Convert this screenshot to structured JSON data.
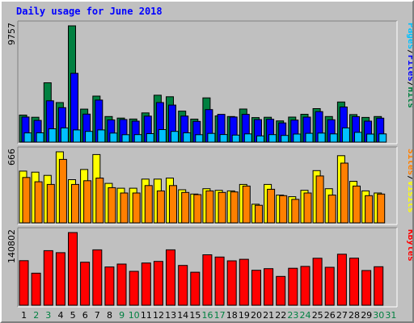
{
  "chart_data": {
    "type": "bar",
    "title": "Daily usage for June 2018",
    "categories": [
      "1",
      "2",
      "3",
      "4",
      "5",
      "6",
      "7",
      "8",
      "9",
      "10",
      "11",
      "12",
      "13",
      "14",
      "15",
      "16",
      "17",
      "18",
      "19",
      "20",
      "21",
      "22",
      "23",
      "24",
      "25",
      "26",
      "27",
      "28",
      "29",
      "30",
      "31"
    ],
    "weekend_days": [
      "2",
      "3",
      "9",
      "10",
      "16",
      "17",
      "23",
      "24",
      "30",
      "31"
    ],
    "colors": {
      "hits": "#008040",
      "files": "#0000ff",
      "pages": "#00c0ff",
      "visits": "#ffff00",
      "sites": "#ff8000",
      "kbytes": "#ff0000",
      "title": "#0000ff",
      "weekday_label": "#000000",
      "weekend_label": "#008040",
      "background": "#c0c0c0"
    },
    "panels": [
      {
        "id": "hits_files_pages",
        "ymax_label": "9757",
        "ylim": [
          0,
          9757
        ],
        "side_label": [
          "Pages",
          "/",
          "Files",
          "/",
          "Hits"
        ],
        "side_colors": [
          "#00c0ff",
          "#000000",
          "#0000ff",
          "#000000",
          "#008040"
        ],
        "series": [
          {
            "name": "Hits",
            "color": "#008040",
            "values": [
              2270,
              2090,
              4980,
              3320,
              9757,
              2770,
              3860,
              2150,
              2020,
              1940,
              2450,
              3940,
              3810,
              2600,
              1930,
              3710,
              2200,
              2150,
              2780,
              2060,
              2090,
              1780,
              2100,
              2340,
              2810,
              2150,
              3370,
              2310,
              2070,
              2150,
              0
            ]
          },
          {
            "name": "Files",
            "color": "#0000ff",
            "values": [
              2110,
              1820,
              3470,
              2890,
              5770,
              2350,
              3530,
              1860,
              1900,
              1760,
              2180,
              3320,
              3110,
              2190,
              1740,
              2730,
              2330,
              2110,
              2330,
              1890,
              1920,
              1610,
              1850,
              2100,
              2560,
              1880,
              2950,
              2140,
              1760,
              2010,
              0
            ]
          },
          {
            "name": "Pages",
            "color": "#00c0ff",
            "values": [
              770,
              780,
              1120,
              1190,
              1020,
              900,
              1020,
              760,
              620,
              630,
              710,
              1050,
              900,
              780,
              620,
              730,
              640,
              590,
              690,
              520,
              630,
              560,
              680,
              740,
              760,
              690,
              1190,
              820,
              680,
              690,
              0
            ]
          }
        ]
      },
      {
        "id": "visits_sites",
        "ymax_label": "666",
        "ylim": [
          0,
          666
        ],
        "side_label": [
          "Sites",
          "/",
          "Visits"
        ],
        "side_colors": [
          "#ff8000",
          "#000000",
          "#ffff00"
        ],
        "series": [
          {
            "name": "Visits",
            "color": "#ffff00",
            "values": [
              485,
              475,
              445,
              666,
              405,
              500,
              640,
              370,
              325,
              325,
              410,
              410,
              420,
              310,
              270,
              320,
              305,
              300,
              360,
              175,
              360,
              260,
              245,
              305,
              490,
              320,
              630,
              390,
              300,
              280,
              0
            ]
          },
          {
            "name": "Sites",
            "color": "#ff8000",
            "values": [
              425,
              385,
              360,
              595,
              360,
              395,
              420,
              330,
              280,
              280,
              350,
              300,
              350,
              285,
              265,
              300,
              285,
              290,
              345,
              165,
              315,
              255,
              220,
              280,
              440,
              260,
              560,
              345,
              255,
              270,
              0
            ]
          }
        ]
      },
      {
        "id": "kbytes",
        "ymax_label": "140802",
        "ylim": [
          0,
          140802
        ],
        "side_label": [
          "KBytes"
        ],
        "side_colors": [
          "#ff0000"
        ],
        "series": [
          {
            "name": "KBytes",
            "color": "#ff0000",
            "values": [
              86300,
              62100,
              105800,
              101800,
              140802,
              83400,
              107300,
              74200,
              79800,
              65700,
              81800,
              84900,
              107300,
              77200,
              64000,
              97800,
              93400,
              86000,
              89000,
              67800,
              70800,
              55800,
              71600,
              75300,
              91100,
              73600,
              98800,
              91200,
              67200,
              74700,
              0
            ]
          }
        ]
      }
    ]
  }
}
